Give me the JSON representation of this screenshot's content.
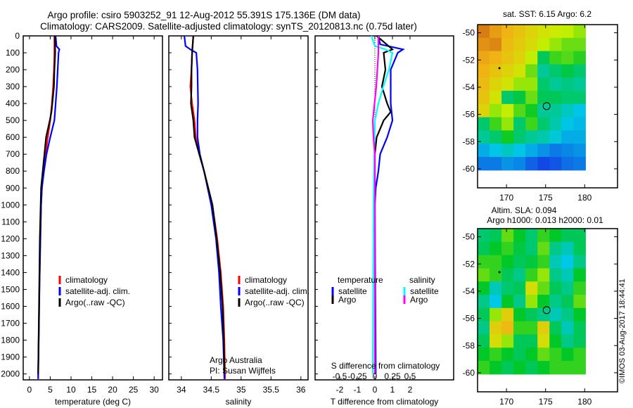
{
  "title_line1": "Argo profile: csiro 5903252_91 12-Aug-2012 55.391S 175.136E (DM data)",
  "title_line2": "Climatology: CARS2009. Satellite-adjusted climatology: synTS_20120813.nc (0.75d later)",
  "credit": "©IMOS 03-Aug-2017 18:44:41",
  "colors": {
    "climatology": "#ff0000",
    "satellite": "#0000ff",
    "argo": "#000000",
    "s_satellite": "#00ffff",
    "s_argo": "#ff00ff"
  },
  "chart_data": [
    {
      "type": "line",
      "id": "temperature",
      "xlabel": "temperature (deg C)",
      "ylabel": "",
      "xlim": [
        -1.5,
        32
      ],
      "ylim": [
        2035,
        0
      ],
      "xticks": [
        0,
        5,
        10,
        15,
        20,
        25,
        30
      ],
      "yticks": [
        0,
        100,
        200,
        300,
        400,
        500,
        600,
        700,
        800,
        900,
        1000,
        1100,
        1200,
        1300,
        1400,
        1500,
        1600,
        1700,
        1800,
        1900,
        2000
      ],
      "legend": [
        "climatology",
        "satellite-adj. clim.",
        "Argo(..raw -QC)"
      ],
      "series": [
        {
          "name": "climatology",
          "color": "#ff0000",
          "depth": [
            0,
            100,
            200,
            300,
            400,
            500,
            600,
            700,
            800,
            900,
            1000,
            1200,
            1500,
            2000,
            2030
          ],
          "values": [
            6.0,
            6.0,
            5.9,
            5.7,
            5.4,
            5.0,
            4.4,
            3.9,
            3.4,
            3.0,
            2.8,
            2.6,
            2.4,
            2.1,
            2.1
          ]
        },
        {
          "name": "satellite-adj. clim.",
          "color": "#0000ff",
          "depth": [
            0,
            60,
            80,
            100,
            200,
            300,
            400,
            500,
            600,
            700,
            800,
            900,
            1000,
            1500,
            2030
          ],
          "values": [
            6.3,
            6.5,
            7.2,
            7.0,
            6.8,
            6.6,
            6.3,
            6.0,
            5.0,
            4.1,
            3.5,
            3.0,
            2.8,
            2.4,
            2.1
          ]
        },
        {
          "name": "Argo(..raw -QC)",
          "color": "#000000",
          "depth": [
            0,
            100,
            200,
            300,
            400,
            450,
            500,
            600,
            700,
            800,
            900,
            1000,
            1200,
            1600,
            2000
          ],
          "values": [
            6.1,
            6.2,
            6.0,
            5.9,
            5.5,
            5.3,
            4.9,
            4.0,
            3.6,
            3.2,
            2.8,
            2.7,
            2.5,
            2.3,
            2.1
          ]
        }
      ]
    },
    {
      "type": "line",
      "id": "salinity",
      "xlabel": "salinity",
      "xlim": [
        33.79,
        36.12
      ],
      "ylim": [
        2035,
        0
      ],
      "xticks": [
        34,
        34.5,
        35,
        35.5,
        36
      ],
      "legend": [
        "climatology",
        "satellite-adj. clim.",
        "Argo(..raw -QC)"
      ],
      "annotation": [
        "Argo Australia",
        "PI: Susan Wijffels"
      ],
      "series": [
        {
          "name": "climatology",
          "color": "#ff0000",
          "depth": [
            0,
            100,
            200,
            300,
            400,
            500,
            600,
            700,
            800,
            900,
            1000,
            1200,
            1400,
            1600,
            1800,
            2000,
            2030
          ],
          "values": [
            34.2,
            34.18,
            34.17,
            34.15,
            34.18,
            34.22,
            34.24,
            34.3,
            34.38,
            34.45,
            34.52,
            34.6,
            34.66,
            34.7,
            34.72,
            34.73,
            34.73
          ]
        },
        {
          "name": "satellite-adj. clim.",
          "color": "#0000ff",
          "depth": [
            0,
            60,
            80,
            100,
            200,
            400,
            500,
            600,
            700,
            800,
            900,
            1000,
            1200,
            1400,
            1600,
            1800,
            2030
          ],
          "values": [
            34.05,
            34.07,
            34.15,
            34.25,
            34.27,
            34.28,
            34.27,
            34.27,
            34.31,
            34.38,
            34.44,
            34.5,
            34.58,
            34.63,
            34.66,
            34.7,
            34.72
          ]
        },
        {
          "name": "Argo(..raw -QC)",
          "color": "#000000",
          "depth": [
            0,
            100,
            200,
            300,
            400,
            500,
            600,
            700,
            800,
            900,
            1000,
            1200,
            1400,
            1600,
            1800,
            2000
          ],
          "values": [
            34.2,
            34.18,
            34.17,
            34.17,
            34.16,
            34.2,
            34.22,
            34.3,
            34.38,
            34.45,
            34.52,
            34.59,
            34.65,
            34.69,
            34.71,
            34.72
          ]
        }
      ]
    },
    {
      "type": "line",
      "id": "difference",
      "xlabel": "T difference from climatology",
      "x2label": "S difference from climatology",
      "xlim": [
        -3.4,
        4.48
      ],
      "ylim": [
        2035,
        0
      ],
      "xticks": [
        -2,
        -1,
        0,
        1,
        2
      ],
      "x2ticks": [
        -0.5,
        -0.25,
        0,
        0.25,
        0.5
      ],
      "legend_t_title": "temperature",
      "legend_s_title": "salinity",
      "legend": [
        "satellite",
        "Argo",
        "satellite",
        "Argo"
      ],
      "series": [
        {
          "name": "T satellite",
          "color": "#0000ff",
          "axis": "T",
          "depth": [
            0,
            50,
            80,
            100,
            200,
            300,
            400,
            500,
            600,
            700,
            800,
            900,
            1000,
            2000
          ],
          "values": [
            0.2,
            0.3,
            1.6,
            1.3,
            0.9,
            0.9,
            0.9,
            1.0,
            0.7,
            0.3,
            0.2,
            0.05,
            0.0,
            0.05
          ]
        },
        {
          "name": "T Argo",
          "color": "#000000",
          "axis": "T",
          "depth": [
            0,
            80,
            100,
            200,
            300,
            400,
            450,
            500,
            600,
            700,
            2000
          ],
          "values": [
            0.1,
            1.0,
            0.5,
            0.6,
            0.4,
            0.7,
            0.9,
            0.5,
            0.1,
            0.0,
            0.0
          ]
        },
        {
          "name": "S satellite",
          "color": "#00ffff",
          "axis": "S",
          "depth": [
            0,
            60,
            80,
            100,
            200,
            300,
            400,
            500,
            1000,
            2000
          ],
          "values": [
            -0.05,
            0.0,
            0.15,
            0.25,
            0.2,
            0.12,
            0.05,
            0.0,
            -0.02,
            -0.03
          ]
        },
        {
          "name": "S Argo",
          "color": "#ff00ff",
          "axis": "S",
          "depth": [
            0,
            100,
            300,
            500,
            600,
            700,
            2000
          ],
          "values": [
            0.05,
            0.05,
            0.02,
            -0.03,
            -0.02,
            0.0,
            0.0
          ]
        }
      ]
    },
    {
      "type": "heatmap",
      "id": "sst_map",
      "title": "sat. SST: 6.15 Argo: 6.2",
      "xlim": [
        166.3,
        184.2
      ],
      "ylim": [
        -61.4,
        -49.4
      ],
      "xticks": [
        170,
        175,
        180
      ],
      "yticks": [
        -50,
        -52,
        -54,
        -56,
        -58,
        -60
      ],
      "lon_range": [
        166.3,
        180.1
      ],
      "lat_range": [
        -49.4,
        -60.1
      ],
      "vrange": [
        4.5,
        9
      ],
      "argo_position": [
        175.136,
        -55.391
      ],
      "grid": [
        [
          8.7,
          8.4,
          8.2,
          8.0,
          7.8,
          7.6,
          7.5,
          7.4,
          7.2
        ],
        [
          8.5,
          8.6,
          8.1,
          7.9,
          7.7,
          7.4,
          7.2,
          7.0,
          7.0
        ],
        [
          8.3,
          8.2,
          8.0,
          7.8,
          7.4,
          6.3,
          6.8,
          6.9,
          6.7
        ],
        [
          8.2,
          8.0,
          7.8,
          7.6,
          7.0,
          6.0,
          6.2,
          6.4,
          6.2
        ],
        [
          8.1,
          7.8,
          7.6,
          7.2,
          7.2,
          6.2,
          6.0,
          6.1,
          6.0
        ],
        [
          8.0,
          7.6,
          6.2,
          6.4,
          7.0,
          6.3,
          6.3,
          6.2,
          6.2
        ],
        [
          7.8,
          7.2,
          7.4,
          6.9,
          6.6,
          6.0,
          6.0,
          5.8,
          5.6
        ],
        [
          6.2,
          6.8,
          7.2,
          6.2,
          6.8,
          6.2,
          5.9,
          5.6,
          5.5
        ],
        [
          6.0,
          6.2,
          6.6,
          6.2,
          6.0,
          5.9,
          5.7,
          5.4,
          5.4
        ],
        [
          5.4,
          5.6,
          5.8,
          5.6,
          5.4,
          5.2,
          5.0,
          5.1,
          5.2
        ],
        [
          5.0,
          5.0,
          5.2,
          5.1,
          4.8,
          4.6,
          4.7,
          4.9,
          5.0
        ]
      ]
    },
    {
      "type": "heatmap",
      "id": "sla_map",
      "title": "Altim. SLA: 0.094",
      "subtitle": "Argo h1000: 0.013 h2000: 0.01",
      "xlim": [
        166.3,
        184.2
      ],
      "ylim": [
        -61.4,
        -49.4
      ],
      "xticks": [
        170,
        175,
        180
      ],
      "yticks": [
        -50,
        -52,
        -54,
        -56,
        -58,
        -60
      ],
      "lon_range": [
        166.3,
        180.1
      ],
      "lat_range": [
        -49.4,
        -60.1
      ],
      "vrange": [
        -0.1,
        0.3
      ],
      "argo_position": [
        175.136,
        -55.391
      ],
      "grid": [
        [
          0.05,
          0.06,
          0.12,
          0.08,
          0.05,
          0.1,
          0.08,
          0.06,
          0.06
        ],
        [
          0.06,
          0.08,
          0.1,
          0.07,
          0.05,
          0.12,
          0.04,
          0.02,
          0.06
        ],
        [
          0.1,
          0.1,
          0.08,
          0.06,
          0.07,
          0.1,
          0.02,
          0.0,
          0.04
        ],
        [
          0.12,
          0.1,
          0.06,
          0.04,
          0.1,
          0.14,
          0.04,
          0.02,
          0.08
        ],
        [
          0.08,
          0.02,
          0.05,
          0.06,
          0.18,
          0.12,
          0.06,
          0.04,
          0.1
        ],
        [
          0.04,
          0.0,
          0.08,
          0.04,
          0.14,
          0.08,
          0.04,
          0.06,
          0.12
        ],
        [
          0.06,
          0.14,
          0.2,
          0.08,
          0.06,
          0.04,
          0.02,
          0.04,
          0.08
        ],
        [
          0.04,
          0.2,
          0.22,
          0.1,
          0.1,
          0.2,
          0.06,
          0.02,
          0.06
        ],
        [
          0.06,
          0.18,
          0.14,
          0.06,
          0.06,
          0.18,
          0.08,
          0.04,
          0.06
        ],
        [
          0.08,
          0.1,
          0.08,
          0.06,
          0.08,
          0.12,
          0.1,
          0.08,
          0.1
        ],
        [
          0.1,
          0.08,
          0.06,
          0.08,
          0.06,
          0.08,
          0.1,
          0.1,
          0.1
        ]
      ]
    }
  ]
}
